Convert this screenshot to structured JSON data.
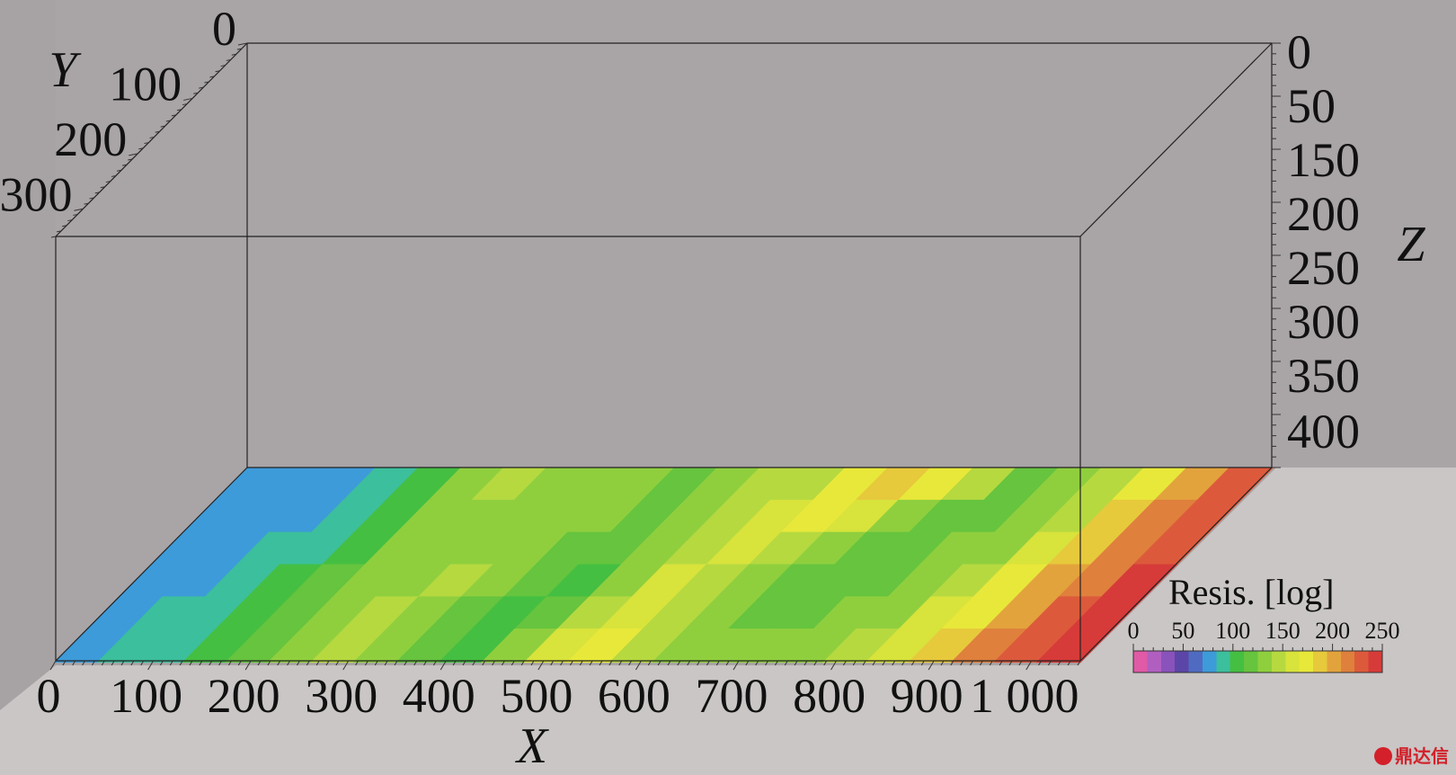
{
  "chart_data": {
    "type": "heatmap",
    "title": "",
    "xlabel": "X",
    "ylabel": "Y",
    "zlabel": "Z",
    "x_ticks": [
      "0",
      "100",
      "200",
      "300",
      "400",
      "500",
      "600",
      "700",
      "800",
      "900",
      "1 000"
    ],
    "y_ticks": [
      "0",
      "100",
      "200",
      "300"
    ],
    "z_ticks": [
      "0",
      "50",
      "150",
      "200",
      "250",
      "300",
      "350",
      "400"
    ],
    "xlim": [
      0,
      1050
    ],
    "ylim": [
      0,
      350
    ],
    "zlim": [
      0,
      400
    ],
    "slice_depth": 400,
    "colorbar": {
      "label": "Resis. [log]",
      "ticks": [
        "0",
        "50",
        "100",
        "150",
        "200",
        "250"
      ],
      "range": [
        0,
        250
      ],
      "colors": [
        "#e05aa6",
        "#b05fc0",
        "#8a52bb",
        "#5b46a8",
        "#4f6bc1",
        "#3d9bd9",
        "#3cbf9c",
        "#44bf42",
        "#66c43e",
        "#8fcf3e",
        "#b6d940",
        "#d8e33b",
        "#e8e83a",
        "#e7c93c",
        "#e3a33c",
        "#df803c",
        "#dc5a3b",
        "#d63b39"
      ]
    },
    "slice_values": [
      [
        72,
        75,
        80,
        88,
        100,
        130,
        140,
        138,
        132,
        130,
        120,
        132,
        142,
        150,
        172,
        182,
        178,
        140,
        120,
        130,
        148,
        180,
        205,
        230
      ],
      [
        74,
        78,
        82,
        92,
        105,
        125,
        135,
        135,
        130,
        132,
        118,
        128,
        140,
        155,
        170,
        160,
        132,
        115,
        118,
        135,
        150,
        185,
        210,
        232
      ],
      [
        75,
        80,
        85,
        95,
        110,
        128,
        136,
        137,
        128,
        122,
        112,
        130,
        150,
        165,
        150,
        125,
        115,
        118,
        125,
        138,
        160,
        192,
        215,
        236
      ],
      [
        76,
        82,
        88,
        98,
        115,
        132,
        138,
        146,
        130,
        115,
        110,
        138,
        160,
        150,
        130,
        120,
        118,
        122,
        130,
        145,
        168,
        198,
        222,
        240
      ],
      [
        78,
        84,
        90,
        100,
        118,
        135,
        140,
        136,
        120,
        110,
        118,
        150,
        165,
        140,
        125,
        122,
        120,
        128,
        138,
        155,
        175,
        205,
        228,
        245
      ],
      [
        80,
        86,
        92,
        102,
        120,
        137,
        140,
        130,
        114,
        108,
        128,
        160,
        170,
        145,
        128,
        126,
        128,
        138,
        148,
        165,
        188,
        212,
        234,
        248
      ]
    ]
  }
}
